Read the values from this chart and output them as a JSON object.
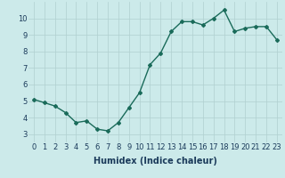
{
  "x": [
    0,
    1,
    2,
    3,
    4,
    5,
    6,
    7,
    8,
    9,
    10,
    11,
    12,
    13,
    14,
    15,
    16,
    17,
    18,
    19,
    20,
    21,
    22,
    23
  ],
  "y": [
    5.1,
    4.9,
    4.7,
    4.3,
    3.7,
    3.8,
    3.3,
    3.2,
    3.7,
    4.6,
    5.5,
    7.2,
    7.9,
    9.2,
    9.8,
    9.8,
    9.6,
    10.0,
    10.5,
    9.2,
    9.4,
    9.5,
    9.5,
    8.7
  ],
  "line_color": "#1a6b5a",
  "marker": "D",
  "marker_size": 2,
  "bg_color": "#cceaea",
  "grid_color": "#b0d0d0",
  "xlabel": "Humidex (Indice chaleur)",
  "xlim": [
    -0.5,
    23.5
  ],
  "ylim": [
    2.5,
    11.0
  ],
  "yticks": [
    3,
    4,
    5,
    6,
    7,
    8,
    9,
    10
  ],
  "xticks": [
    0,
    1,
    2,
    3,
    4,
    5,
    6,
    7,
    8,
    9,
    10,
    11,
    12,
    13,
    14,
    15,
    16,
    17,
    18,
    19,
    20,
    21,
    22,
    23
  ],
  "xtick_labels": [
    "0",
    "1",
    "2",
    "3",
    "4",
    "5",
    "6",
    "7",
    "8",
    "9",
    "10",
    "11",
    "12",
    "13",
    "14",
    "15",
    "16",
    "17",
    "18",
    "19",
    "20",
    "21",
    "22",
    "23"
  ],
  "font_color": "#1a3a5a",
  "xlabel_fontsize": 7,
  "tick_fontsize": 6,
  "linewidth": 1.0
}
